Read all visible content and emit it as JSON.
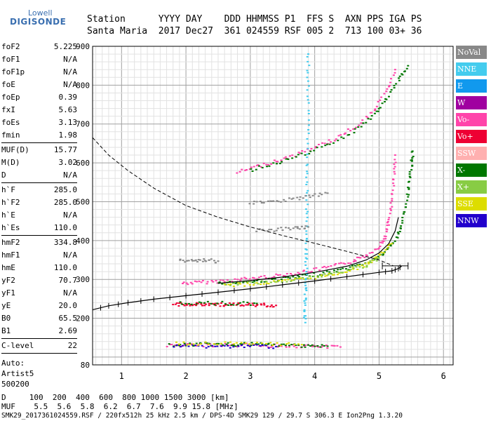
{
  "logo": {
    "brand": "Lowell",
    "product": "DIGISONDE"
  },
  "header": {
    "labels": "Station      YYYY DAY    DDD HHMMSS P1  FFS S  AXN PPS IGA PS",
    "values": "Santa Maria  2017 Dec27  361 024559 RSF 005 2  713 100 03+ 36"
  },
  "parameters": [
    [
      {
        "label": "foF2",
        "value": "5.225"
      },
      {
        "label": "foF1",
        "value": "N/A"
      },
      {
        "label": "foF1p",
        "value": "N/A"
      },
      {
        "label": "foE",
        "value": "N/A"
      },
      {
        "label": "foEp",
        "value": "0.39"
      },
      {
        "label": "fxI",
        "value": "5.63"
      },
      {
        "label": "foEs",
        "value": "3.13"
      },
      {
        "label": "fmin",
        "value": "1.98"
      }
    ],
    [
      {
        "label": "MUF(D)",
        "value": "15.77"
      },
      {
        "label": "M(D)",
        "value": "3.02"
      },
      {
        "label": "D",
        "value": "N/A"
      }
    ],
    [
      {
        "label": "h`F",
        "value": "285.0"
      },
      {
        "label": "h`F2",
        "value": "285.0"
      },
      {
        "label": "h`E",
        "value": "N/A"
      },
      {
        "label": "h`Es",
        "value": "110.0"
      }
    ],
    [
      {
        "label": "hmF2",
        "value": "334.8"
      },
      {
        "label": "hmF1",
        "value": "N/A"
      },
      {
        "label": "hmE",
        "value": "110.0"
      },
      {
        "label": "yF2",
        "value": "70.7"
      },
      {
        "label": "yF1",
        "value": "N/A"
      },
      {
        "label": "yE",
        "value": "20.0"
      },
      {
        "label": "B0",
        "value": "65.5"
      },
      {
        "label": "B1",
        "value": "2.69"
      }
    ],
    [
      {
        "label": "C-level",
        "value": "22"
      }
    ]
  ],
  "autoscale": {
    "line1": "Auto:",
    "line2": "Artist5",
    "line3": "500200"
  },
  "legend": [
    {
      "label": "NoVal",
      "color": "#888888"
    },
    {
      "label": "NNE",
      "color": "#44ccee"
    },
    {
      "label": "E",
      "color": "#1199ee"
    },
    {
      "label": "W",
      "color": "#a000a0"
    },
    {
      "label": "Vo-",
      "color": "#ff44aa"
    },
    {
      "label": "Vo+",
      "color": "#ee0033"
    },
    {
      "label": "SSW",
      "color": "#ffb0b0"
    },
    {
      "label": "X-",
      "color": "#007700"
    },
    {
      "label": "X+",
      "color": "#88cc44"
    },
    {
      "label": "SSE",
      "color": "#dddd00"
    },
    {
      "label": "NNW",
      "color": "#2200cc"
    }
  ],
  "muf_table": {
    "d_row": "D     100  200  400  600  800 1000 1500 3000 [km]",
    "muf_row": "MUF    5.5  5.6  5.8  6.2  6.7  7.6  9.9 15.8 [MHz]"
  },
  "footer": "SMK29_2017361024559.RSF / 220fx512h 25 kHz 2.5 km / DPS-4D SMK29 129 / 29.7 S 306.3 E Ion2Png 1.3.20",
  "chart_data": {
    "type": "scatter",
    "xlim": [
      0.55,
      6.15
    ],
    "ylim": [
      80,
      900
    ],
    "x_ticks": [
      1,
      2,
      3,
      4,
      5,
      6
    ],
    "y_ticks": [
      80,
      200,
      300,
      400,
      500,
      600,
      700,
      800,
      900
    ],
    "grid": true,
    "legend_position": "right",
    "series": [
      {
        "points": [
          [
            1.95,
            290
          ],
          [
            2.2,
            292
          ],
          [
            2.5,
            295
          ],
          [
            2.8,
            299
          ],
          [
            3.1,
            304
          ],
          [
            3.4,
            309
          ],
          [
            3.7,
            316
          ],
          [
            4.0,
            324
          ],
          [
            4.3,
            334
          ],
          [
            4.6,
            347
          ],
          [
            4.8,
            362
          ],
          [
            5.0,
            385
          ],
          [
            5.1,
            410
          ],
          [
            5.15,
            450
          ],
          [
            5.2,
            500
          ],
          [
            5.23,
            560
          ],
          [
            5.25,
            620
          ]
        ],
        "color": "#ff44aa"
      },
      {
        "points": [
          [
            2.5,
            290
          ],
          [
            2.8,
            292
          ],
          [
            3.1,
            296
          ],
          [
            3.4,
            300
          ],
          [
            3.7,
            305
          ],
          [
            4.0,
            312
          ],
          [
            4.3,
            320
          ],
          [
            4.6,
            332
          ],
          [
            4.9,
            348
          ],
          [
            5.1,
            370
          ],
          [
            5.25,
            400
          ],
          [
            5.35,
            440
          ],
          [
            5.42,
            490
          ],
          [
            5.47,
            540
          ],
          [
            5.5,
            590
          ],
          [
            5.52,
            630
          ]
        ],
        "color": "#007700"
      },
      {
        "points": [
          [
            2.6,
            285
          ],
          [
            3.0,
            288
          ],
          [
            3.4,
            293
          ],
          [
            3.8,
            300
          ],
          [
            4.2,
            310
          ],
          [
            4.5,
            322
          ],
          [
            4.8,
            338
          ],
          [
            5.0,
            360
          ],
          [
            5.2,
            392
          ]
        ],
        "color": "#dddd00"
      },
      {
        "points": [
          [
            2.6,
            288
          ],
          [
            3.0,
            291
          ],
          [
            3.5,
            297
          ],
          [
            4.0,
            306
          ],
          [
            4.4,
            318
          ],
          [
            4.8,
            336
          ],
          [
            5.0,
            355
          ]
        ],
        "color": "#88cc44"
      },
      {
        "points": [
          [
            2.8,
            575
          ],
          [
            3.1,
            590
          ],
          [
            3.4,
            605
          ],
          [
            3.7,
            620
          ],
          [
            4.0,
            640
          ],
          [
            4.3,
            660
          ],
          [
            4.6,
            690
          ],
          [
            4.9,
            730
          ],
          [
            5.1,
            780
          ],
          [
            5.25,
            840
          ]
        ],
        "color": "#ff44aa"
      },
      {
        "points": [
          [
            3.0,
            580
          ],
          [
            3.4,
            600
          ],
          [
            3.8,
            620
          ],
          [
            4.2,
            645
          ],
          [
            4.6,
            680
          ],
          [
            4.9,
            720
          ],
          [
            5.1,
            760
          ],
          [
            5.3,
            810
          ],
          [
            5.45,
            850
          ]
        ],
        "color": "#007700"
      },
      {
        "points": [
          [
            1.7,
            130
          ],
          [
            2.0,
            130
          ],
          [
            2.3,
            131
          ],
          [
            2.6,
            130
          ],
          [
            2.9,
            131
          ],
          [
            3.2,
            130
          ],
          [
            3.5,
            129
          ],
          [
            3.8,
            128
          ],
          [
            4.1,
            127
          ],
          [
            4.4,
            126
          ]
        ],
        "color": "#ff44aa"
      },
      {
        "points": [
          [
            1.75,
            132
          ],
          [
            2.1,
            132
          ],
          [
            2.4,
            133
          ],
          [
            2.7,
            132
          ],
          [
            3.0,
            133
          ],
          [
            3.3,
            131
          ],
          [
            3.6,
            130
          ],
          [
            3.9,
            130
          ],
          [
            4.2,
            128
          ]
        ],
        "color": "#007700"
      },
      {
        "points": [
          [
            1.8,
            128
          ],
          [
            2.2,
            128
          ],
          [
            2.6,
            127
          ],
          [
            3.0,
            128
          ],
          [
            3.4,
            127
          ]
        ],
        "color": "#2200cc"
      },
      {
        "points": [
          [
            1.85,
            134
          ],
          [
            2.3,
            135
          ],
          [
            2.8,
            134
          ],
          [
            3.3,
            133
          ],
          [
            3.8,
            132
          ]
        ],
        "color": "#dddd00"
      },
      {
        "points": [
          [
            1.8,
            236
          ],
          [
            2.0,
            236
          ],
          [
            2.2,
            235
          ],
          [
            2.4,
            236
          ],
          [
            2.6,
            235
          ],
          [
            2.8,
            235
          ],
          [
            3.0,
            234
          ],
          [
            3.2,
            234
          ],
          [
            3.4,
            233
          ]
        ],
        "color": "#ee0033"
      },
      {
        "points": [
          [
            1.9,
            240
          ],
          [
            2.3,
            239
          ],
          [
            2.7,
            238
          ],
          [
            3.1,
            238
          ]
        ],
        "color": "#007700"
      },
      {
        "points": [
          [
            3.85,
            190
          ],
          [
            3.85,
            230
          ],
          [
            3.86,
            280
          ],
          [
            3.87,
            330
          ],
          [
            3.87,
            380
          ],
          [
            3.88,
            450
          ],
          [
            3.88,
            520
          ],
          [
            3.89,
            600
          ],
          [
            3.9,
            700
          ],
          [
            3.9,
            800
          ],
          [
            3.9,
            880
          ]
        ],
        "color": "#44ccee"
      },
      {
        "points": [
          [
            3.0,
            495
          ],
          [
            3.3,
            500
          ],
          [
            3.6,
            505
          ],
          [
            3.9,
            512
          ],
          [
            4.2,
            522
          ]
        ],
        "color": "#888888"
      },
      {
        "points": [
          [
            3.1,
            425
          ],
          [
            3.4,
            428
          ],
          [
            3.7,
            432
          ],
          [
            3.9,
            435
          ]
        ],
        "color": "#888888"
      },
      {
        "points": [
          [
            1.9,
            350
          ],
          [
            2.1,
            348
          ],
          [
            2.3,
            349
          ],
          [
            2.5,
            347
          ]
        ],
        "color": "#888888"
      }
    ],
    "dashed_profile": [
      [
        0.55,
        665
      ],
      [
        0.8,
        620
      ],
      [
        1.1,
        580
      ],
      [
        1.5,
        535
      ],
      [
        2.0,
        490
      ],
      [
        2.5,
        460
      ],
      [
        3.0,
        435
      ],
      [
        3.5,
        413
      ],
      [
        4.0,
        393
      ],
      [
        4.5,
        372
      ],
      [
        5.0,
        350
      ],
      [
        5.22,
        335
      ]
    ],
    "model_trace": [
      [
        2.5,
        290
      ],
      [
        3.0,
        297
      ],
      [
        3.5,
        306
      ],
      [
        4.0,
        318
      ],
      [
        4.5,
        334
      ],
      [
        4.8,
        350
      ],
      [
        5.0,
        368
      ],
      [
        5.15,
        392
      ],
      [
        5.25,
        425
      ],
      [
        5.3,
        460
      ]
    ],
    "virtual_profile": [
      [
        0.55,
        222
      ],
      [
        0.8,
        232
      ],
      [
        1.1,
        240
      ],
      [
        1.5,
        249
      ],
      [
        2.0,
        258
      ],
      [
        2.5,
        267
      ],
      [
        3.0,
        276
      ],
      [
        3.5,
        286
      ],
      [
        4.0,
        296
      ],
      [
        4.5,
        307
      ],
      [
        5.0,
        318
      ],
      [
        5.2,
        322
      ],
      [
        5.3,
        328
      ],
      [
        5.35,
        334
      ]
    ],
    "hmF2_bar": {
      "x_min": 5.05,
      "x_max": 5.45,
      "y": 334.8
    }
  }
}
